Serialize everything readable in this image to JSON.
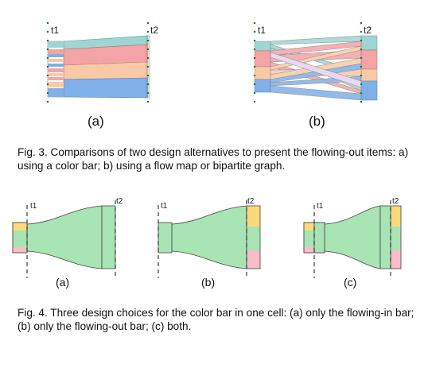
{
  "fig3": {
    "caption": "Fig. 3.  Comparisons of two design alternatives to present the flowing-out items: a) using a color bar; b) using a flow map or bipartite graph.",
    "panels": [
      {
        "label": "(a)",
        "t1": "t1",
        "t2": "t2"
      },
      {
        "label": "(b)",
        "t1": "t1",
        "t2": "t2"
      }
    ]
  },
  "fig4": {
    "caption": "Fig. 4.  Three design choices for the color bar in one cell: (a) only the flowing-in bar; (b) only the flowing-out bar; (c) both.",
    "panels": [
      {
        "label": "(a)",
        "t1": "t1",
        "t2": "t2"
      },
      {
        "label": "(b)",
        "t1": "t1",
        "t2": "t2"
      },
      {
        "label": "(c)",
        "t1": "t1",
        "t2": "t2"
      }
    ]
  },
  "colors": {
    "teal": "#9fd5d3",
    "red": "#f4a3a6",
    "peach": "#f9c9a8",
    "blue": "#7fb0e8",
    "green": "#a8e4b4",
    "yellow": "#fbd97a",
    "pink": "#f8bdc8",
    "marker": "#1a7a1a"
  }
}
